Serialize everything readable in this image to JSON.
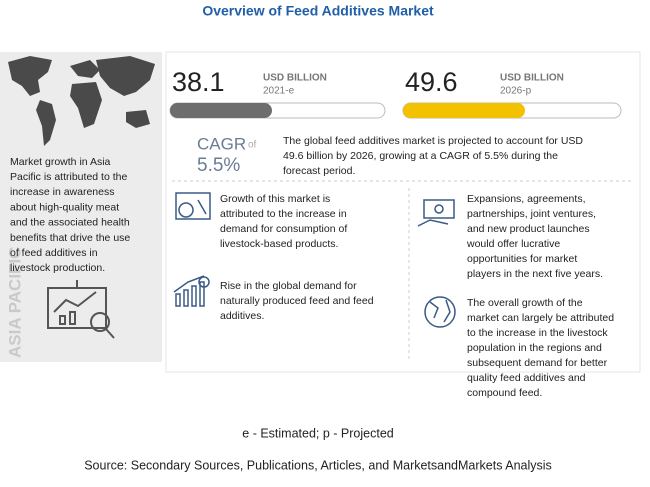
{
  "header": {
    "title": "Overview of Feed Additives Market"
  },
  "region": {
    "label": "ASIA PACIFIC",
    "text": [
      "Market growth in Asia",
      "Pacific is attributed to the",
      "increase in awareness",
      "about high-quality meat",
      "and the associated health",
      "benefits that drive the use",
      "of feed additives in",
      "livestock production."
    ]
  },
  "market": {
    "current": {
      "value": "38.1",
      "unit": "USD BILLION",
      "year": "2021-e"
    },
    "forecast": {
      "value": "49.6",
      "unit": "USD BILLION",
      "year": "2026-p"
    },
    "cagr": {
      "label": "CAGR",
      "of": "of",
      "value": "5.5%"
    },
    "summary": [
      "The global feed additives market is projected to account for USD",
      "49.6 billion by 2026, growing at a CAGR of 5.5% during the",
      "forecast period."
    ]
  },
  "insights": [
    {
      "text": [
        "Growth of this market is",
        "attributed to the increase in",
        "demand for consumption of",
        "livestock-based products."
      ]
    },
    {
      "text": [
        "Rise in the global demand for",
        "naturally produced feed and feed",
        "additives."
      ]
    },
    {
      "text": [
        "Expansions, agreements,",
        "partnerships, joint ventures,",
        "and new product launches",
        "would offer lucrative",
        "opportunities for market",
        "players in the next five years."
      ]
    },
    {
      "text": [
        "The overall growth of the",
        "market can largely be attributed",
        "to the increase in the livestock",
        "population in the regions and",
        "subsequent demand for better",
        "quality feed additives and",
        "compound feed."
      ]
    }
  ],
  "footer": {
    "note": "e - Estimated; p - Projected",
    "source": "Source: Secondary Sources, Publications, Articles, and MarketsandMarkets Analysis"
  }
}
